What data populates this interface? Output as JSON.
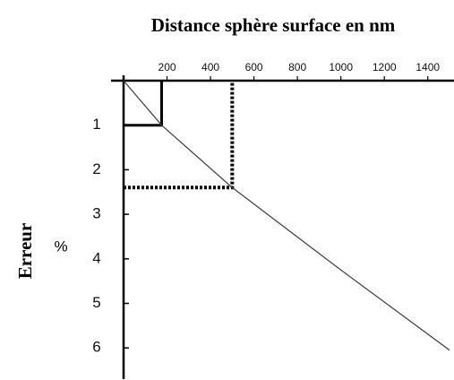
{
  "chart_data": {
    "type": "line",
    "title": "Distance sphère surface en nm",
    "ylabel": "Erreur",
    "yunit": "%",
    "x": [
      0,
      175,
      500,
      1000,
      1500
    ],
    "series": [
      {
        "name": null,
        "color": "#444444",
        "values": [
          0,
          1,
          2.4,
          4.25,
          6.05
        ]
      }
    ],
    "xlim": [
      0,
      1500
    ],
    "xticks": [
      200,
      400,
      600,
      800,
      1000,
      1200,
      1400
    ],
    "ylim": [
      0,
      6.7
    ],
    "yticks": [
      1,
      2,
      3,
      4,
      5,
      6
    ],
    "y_inverted": true,
    "x_axis_position": "top",
    "guides": [
      {
        "x": 175,
        "y": 1,
        "style": "solid"
      },
      {
        "x": 500,
        "y": 2.4,
        "style": "dotted"
      }
    ]
  }
}
